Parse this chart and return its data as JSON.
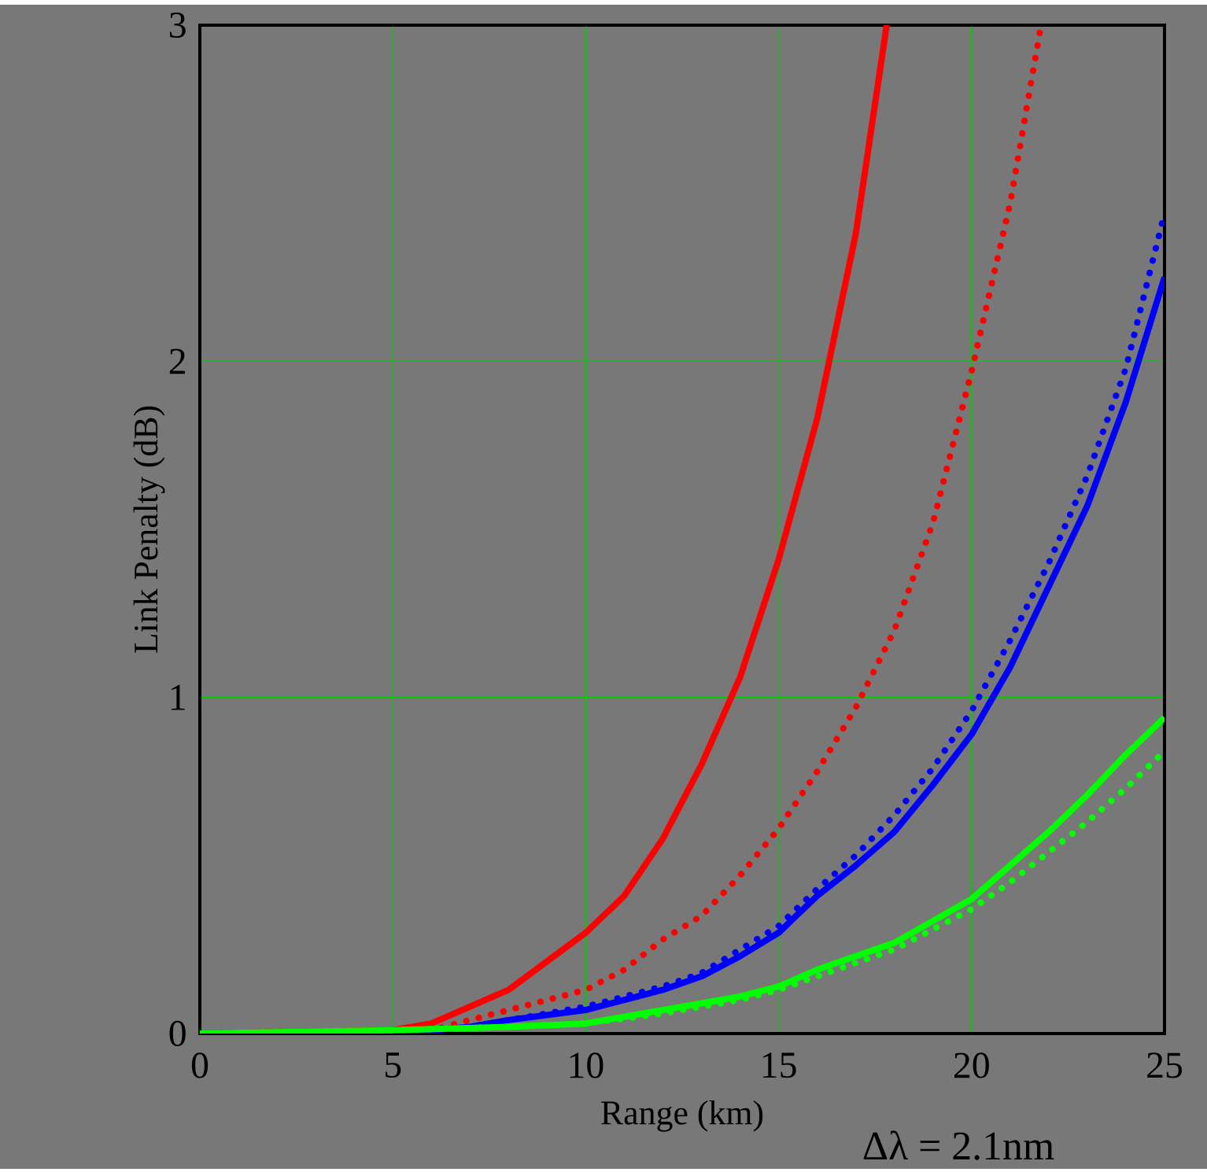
{
  "chart_data": {
    "type": "line",
    "xlabel": "Range (km)",
    "ylabel": "Link Penalty (dB)",
    "annotations": [
      "Δλ = 2.1nm"
    ],
    "xlim": [
      0,
      25
    ],
    "ylim": [
      0,
      3
    ],
    "xticks": [
      0,
      5,
      10,
      15,
      20,
      25
    ],
    "yticks": [
      0,
      1,
      2,
      3
    ],
    "grid": true,
    "series": [
      {
        "color": "#ff0000",
        "line_style": "solid",
        "x": [
          0,
          5,
          6,
          8,
          10,
          11,
          12,
          13,
          14,
          15,
          16,
          17,
          17.8
        ],
        "values": [
          0,
          0.01,
          0.03,
          0.13,
          0.3,
          0.41,
          0.58,
          0.8,
          1.06,
          1.41,
          1.83,
          2.38,
          3
        ]
      },
      {
        "color": "#ff0000",
        "line_style": "dotted",
        "x": [
          0,
          6,
          7,
          8,
          10,
          11,
          12,
          13,
          14,
          15,
          16,
          17,
          18,
          19,
          20,
          21,
          21.8
        ],
        "values": [
          0,
          0.01,
          0.04,
          0.07,
          0.13,
          0.19,
          0.28,
          0.35,
          0.47,
          0.61,
          0.78,
          0.97,
          1.2,
          1.52,
          1.97,
          2.47,
          3
        ]
      },
      {
        "color": "#0000ff",
        "line_style": "solid",
        "x": [
          0,
          5,
          7,
          8,
          10,
          12,
          13,
          14,
          15,
          16,
          17,
          18,
          19,
          20,
          21,
          22,
          23,
          24,
          25
        ],
        "values": [
          0,
          0,
          0.02,
          0.04,
          0.07,
          0.13,
          0.17,
          0.23,
          0.3,
          0.41,
          0.5,
          0.6,
          0.74,
          0.89,
          1.09,
          1.33,
          1.57,
          1.88,
          2.25
        ]
      },
      {
        "color": "#0000ff",
        "line_style": "dotted",
        "x": [
          0,
          5,
          7,
          8,
          10,
          12,
          13,
          14,
          15,
          16,
          17,
          18,
          19,
          20,
          21,
          22,
          23,
          24,
          25
        ],
        "values": [
          0,
          0,
          0.02,
          0.04,
          0.08,
          0.14,
          0.18,
          0.25,
          0.32,
          0.43,
          0.53,
          0.65,
          0.79,
          0.96,
          1.17,
          1.4,
          1.66,
          1.98,
          2.44
        ]
      },
      {
        "color": "#00ff00",
        "line_style": "solid",
        "x": [
          0,
          5,
          8,
          10,
          12,
          14,
          15,
          16,
          18,
          20,
          21,
          22,
          23,
          24,
          25
        ],
        "values": [
          0,
          0.01,
          0.02,
          0.03,
          0.07,
          0.11,
          0.14,
          0.19,
          0.27,
          0.4,
          0.5,
          0.6,
          0.71,
          0.83,
          0.94
        ]
      },
      {
        "color": "#00ff00",
        "line_style": "dotted",
        "x": [
          0,
          5,
          8,
          10,
          12,
          14,
          15,
          16,
          18,
          20,
          21,
          22,
          23,
          24,
          25
        ],
        "values": [
          0,
          0.01,
          0.02,
          0.03,
          0.06,
          0.1,
          0.13,
          0.17,
          0.25,
          0.37,
          0.45,
          0.54,
          0.63,
          0.73,
          0.84
        ]
      }
    ]
  }
}
